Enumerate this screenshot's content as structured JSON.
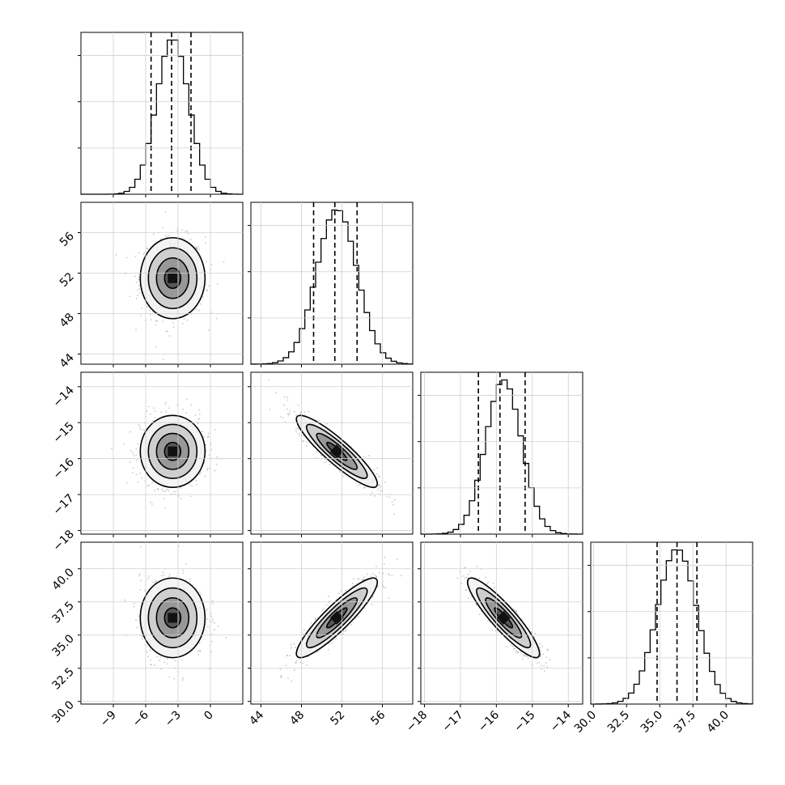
{
  "chart_data": {
    "type": "corner",
    "parameters": [
      {
        "ticks": [
          -9,
          -6,
          -3,
          0
        ],
        "tick_labels": [
          "−9",
          "−6",
          "−3",
          "0"
        ],
        "range": [
          -12,
          3
        ],
        "mean": -3.5,
        "sd": 1.5,
        "quantiles": [
          -5.5,
          -3.6,
          -1.8
        ]
      },
      {
        "ticks": [
          44,
          48,
          52,
          56
        ],
        "tick_labels": [
          "44",
          "48",
          "52",
          "56"
        ],
        "range": [
          43,
          59
        ],
        "mean": 51.5,
        "sd": 2.0,
        "quantiles": [
          49.2,
          51.3,
          53.5
        ]
      },
      {
        "ticks": [
          -18,
          -17,
          -16,
          -15,
          -14
        ],
        "tick_labels": [
          "−18",
          "−17",
          "−16",
          "−15",
          "−14"
        ],
        "range": [
          -18.1,
          -13.6
        ],
        "mean": -15.8,
        "sd": 0.5,
        "quantiles": [
          -16.5,
          -15.9,
          -15.2
        ]
      },
      {
        "ticks": [
          30,
          32.5,
          35,
          37.5,
          40
        ],
        "tick_labels": [
          "30.0",
          "32.5",
          "35.0",
          "37.5",
          "40.0"
        ],
        "range": [
          29.8,
          42.0
        ],
        "mean": 36.3,
        "sd": 1.5,
        "quantiles": [
          34.8,
          36.3,
          37.8
        ]
      }
    ],
    "correlations": [
      [
        1,
        0,
        0,
        0
      ],
      [
        0,
        1,
        -0.9,
        0.9
      ],
      [
        0,
        -0.9,
        1,
        -0.9
      ],
      [
        0,
        0.9,
        -0.9,
        1
      ]
    ],
    "contour_levels_sigma": [
      0.5,
      1.0,
      1.5,
      2.0
    ],
    "quantile_line_style": "dashed",
    "grid": true
  }
}
